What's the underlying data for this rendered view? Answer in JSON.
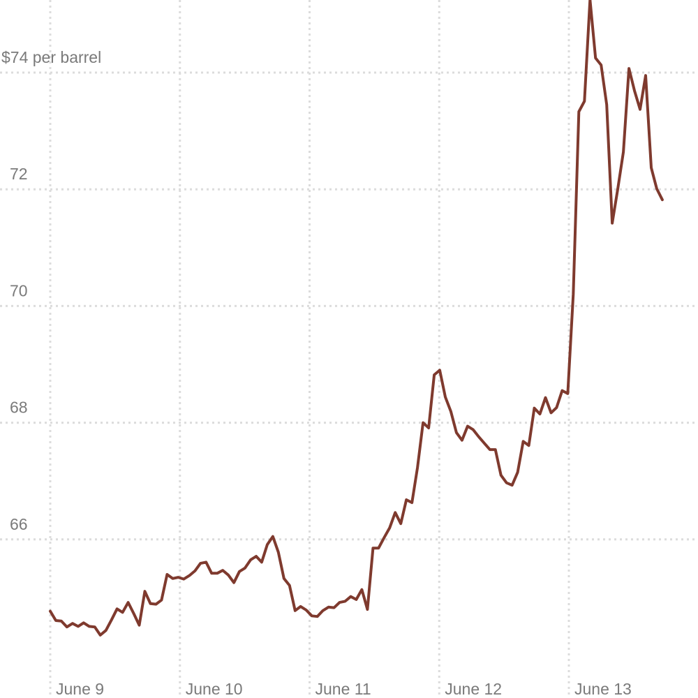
{
  "chart_data": {
    "type": "line",
    "title": "",
    "xlabel": "",
    "ylabel": "",
    "y_unit_label": "$74 per barrel",
    "ylim": [
      63.5,
      75.25
    ],
    "yticks": [
      {
        "value": 74,
        "label": "$74 per barrel"
      },
      {
        "value": 72,
        "label": "72"
      },
      {
        "value": 70,
        "label": "70"
      },
      {
        "value": 68,
        "label": "68"
      },
      {
        "value": 66,
        "label": "66"
      }
    ],
    "xticks": [
      "June 9",
      "June 10",
      "June 11",
      "June 12",
      "June 13"
    ],
    "x_start": "June 9 00:00",
    "x_step_hours": 1.03,
    "grid": true,
    "line_color": "#7f3a2e",
    "grid_color": "#dcdcdc",
    "series": [
      {
        "values": [
          64.77,
          64.61,
          64.6,
          64.5,
          64.56,
          64.51,
          64.57,
          64.51,
          64.5,
          64.36,
          64.44,
          64.62,
          64.81,
          64.75,
          64.92,
          64.73,
          64.53,
          65.11,
          64.9,
          64.89,
          64.96,
          65.4,
          65.33,
          65.35,
          65.32,
          65.38,
          65.46,
          65.59,
          65.61,
          65.42,
          65.42,
          65.47,
          65.39,
          65.26,
          65.45,
          65.51,
          65.65,
          65.71,
          65.61,
          65.91,
          66.05,
          65.78,
          65.33,
          65.21,
          64.78,
          64.85,
          64.79,
          64.69,
          64.68,
          64.78,
          64.84,
          64.83,
          64.92,
          64.94,
          65.02,
          64.97,
          65.14,
          64.8,
          65.85,
          65.85,
          66.03,
          66.2,
          66.46,
          66.27,
          66.68,
          66.63,
          67.23,
          68.0,
          67.91,
          68.82,
          68.9,
          68.44,
          68.19,
          67.83,
          67.7,
          67.94,
          67.88,
          67.76,
          67.65,
          67.54,
          67.54,
          67.1,
          66.97,
          66.93,
          67.15,
          67.68,
          67.61,
          68.25,
          68.15,
          68.43,
          68.17,
          68.26,
          68.55,
          68.5,
          70.2,
          73.33,
          73.51,
          75.25,
          74.25,
          74.13,
          73.45,
          71.42,
          72.01,
          72.64,
          74.07,
          73.69,
          73.37,
          73.95,
          72.37,
          72.01,
          71.82
        ]
      }
    ]
  }
}
